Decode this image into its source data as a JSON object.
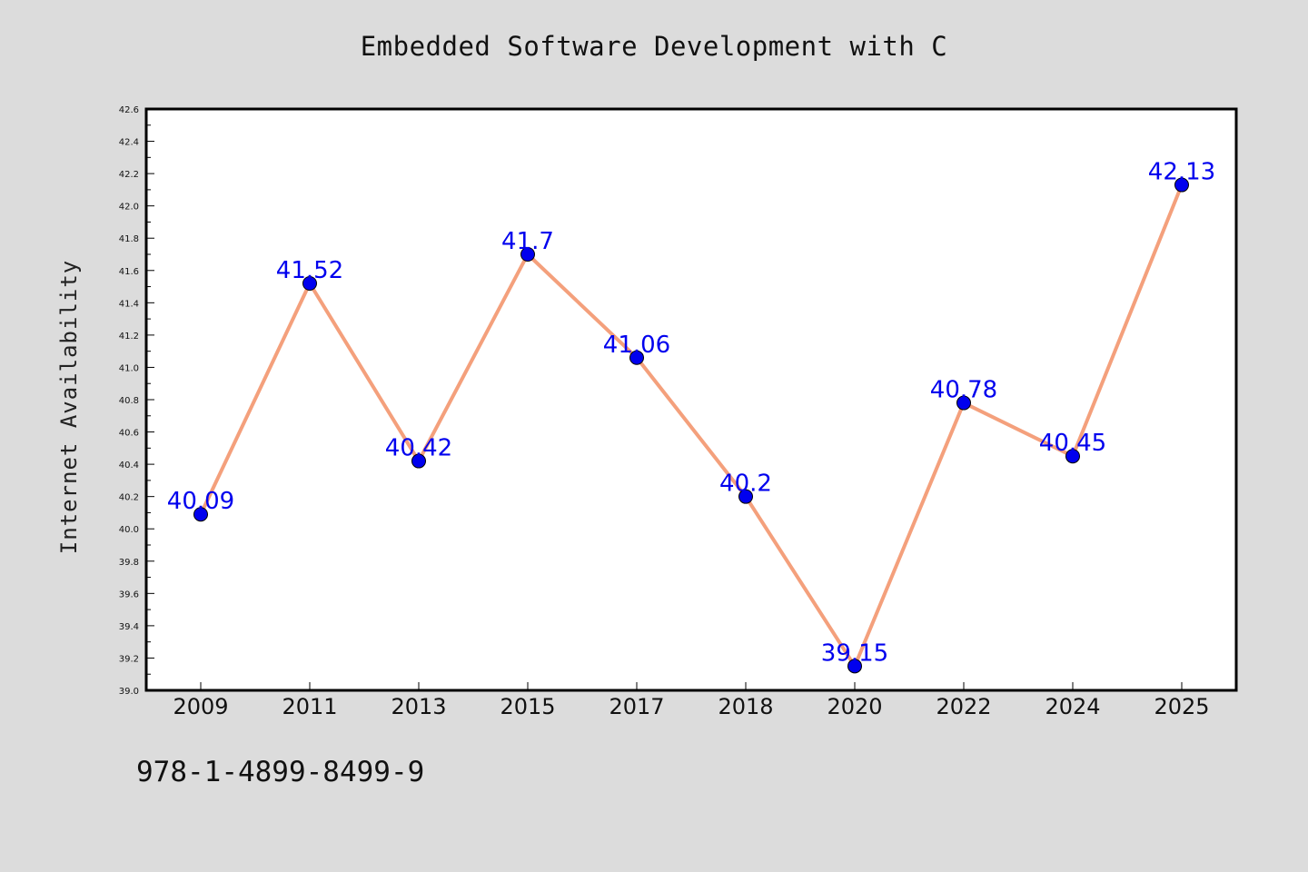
{
  "page": {
    "background": "#dcdcdc",
    "isbn": "978-1-4899-8499-9"
  },
  "chart_data": {
    "type": "line",
    "title": "Embedded Software Development with C",
    "xlabel": "",
    "ylabel": "Internet Availability",
    "categories": [
      "2009",
      "2011",
      "2013",
      "2015",
      "2017",
      "2018",
      "2020",
      "2022",
      "2024",
      "2025"
    ],
    "series": [
      {
        "values": [
          40.09,
          41.52,
          40.42,
          41.7,
          41.06,
          40.2,
          39.15,
          40.78,
          40.45,
          42.13
        ],
        "labels": [
          "40.09",
          "41.52",
          "40.42",
          "41.7",
          "41.06",
          "40.2",
          "39.15",
          "40.78",
          "40.45",
          "42.13"
        ],
        "line_color": "#f4a07c",
        "marker_color": "#0000ee",
        "label_color": "#0000ee"
      }
    ],
    "ylim": [
      39.0,
      42.6
    ],
    "yticks": [
      "39.0",
      "39.2",
      "39.4",
      "39.6",
      "39.8",
      "40.0",
      "40.2",
      "40.4",
      "40.6",
      "40.8",
      "41.0",
      "41.2",
      "41.4",
      "41.6",
      "41.8",
      "42.0",
      "42.2",
      "42.4",
      "42.6"
    ],
    "grid": false,
    "legend": "none",
    "plot_background": "#ffffff"
  }
}
